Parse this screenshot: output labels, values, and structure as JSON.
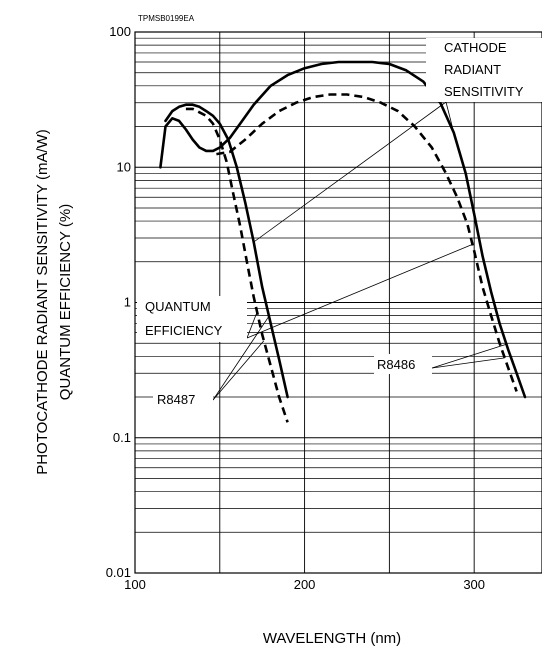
{
  "chart_data": {
    "type": "line",
    "code_label": "TPMSB0199EA",
    "xlabel": "WAVELENGTH (nm)",
    "ylabel_line1": "PHOTOCATHODE RADIANT SENSITIVITY (mA/W)",
    "ylabel_line2": "QUANTUM EFFICIENCY (%)",
    "xlim": [
      100,
      340
    ],
    "ylim": [
      0.01,
      100
    ],
    "yscale": "log",
    "x_ticks": [
      {
        "value": 100,
        "label": "100"
      },
      {
        "value": 200,
        "label": "200"
      },
      {
        "value": 300,
        "label": "300"
      }
    ],
    "y_ticks": [
      {
        "value": 100,
        "label": "100"
      },
      {
        "value": 10,
        "label": "10"
      },
      {
        "value": 1,
        "label": "1"
      },
      {
        "value": 0.1,
        "label": "0.1"
      },
      {
        "value": 0.01,
        "label": "0.01"
      }
    ],
    "grid": true,
    "annotations": {
      "cathode_line1": "CATHODE",
      "cathode_line2": "RADIANT",
      "cathode_line3": "SENSITIVITY",
      "qe_line1": "QUANTUM",
      "qe_line2": "EFFICIENCY",
      "r8487": "R8487",
      "r8486": "R8486"
    },
    "series": [
      {
        "id": "r8486_radiant",
        "style": "solid",
        "x": [
          115,
          118,
          122,
          126,
          130,
          134,
          138,
          142,
          146,
          150,
          156,
          162,
          170,
          180,
          190,
          200,
          210,
          220,
          230,
          240,
          250,
          260,
          270,
          280,
          288,
          295,
          300,
          305,
          310,
          315,
          320,
          325,
          330
        ],
        "y": [
          10,
          20,
          23,
          22,
          19,
          16,
          14,
          13.2,
          13.2,
          14,
          16.5,
          21,
          29,
          40,
          48,
          54,
          58,
          60,
          60,
          60,
          58,
          52,
          43,
          30,
          18,
          9,
          4.5,
          2.2,
          1.2,
          0.7,
          0.45,
          0.3,
          0.2
        ]
      },
      {
        "id": "r8486_qe",
        "style": "dashed",
        "x": [
          148,
          156,
          165,
          175,
          185,
          195,
          205,
          215,
          225,
          235,
          245,
          255,
          265,
          275,
          283,
          290,
          296,
          300,
          305,
          310,
          315,
          320,
          325
        ],
        "y": [
          12.5,
          13,
          16,
          21,
          26,
          30,
          33,
          34.5,
          34.5,
          33,
          30,
          26,
          20,
          14,
          9.2,
          6,
          3.8,
          2.4,
          1.3,
          0.8,
          0.5,
          0.33,
          0.22
        ]
      },
      {
        "id": "r8487_radiant",
        "style": "solid",
        "x": [
          118,
          122,
          126,
          130,
          134,
          138,
          142,
          146,
          150,
          155,
          160,
          165,
          170,
          175,
          180,
          185,
          190
        ],
        "y": [
          22,
          26,
          28,
          29,
          29,
          28,
          26,
          24,
          21,
          16,
          10,
          5.5,
          2.8,
          1.3,
          0.7,
          0.38,
          0.2
        ]
      },
      {
        "id": "r8487_qe",
        "style": "dashed",
        "x": [
          130,
          134,
          138,
          142,
          146,
          150,
          154,
          158,
          162,
          166,
          170,
          175,
          180,
          185,
          190
        ],
        "y": [
          27,
          27,
          25.5,
          24,
          21,
          16,
          11,
          6.3,
          3.7,
          2,
          1.1,
          0.58,
          0.34,
          0.2,
          0.13
        ]
      }
    ]
  }
}
